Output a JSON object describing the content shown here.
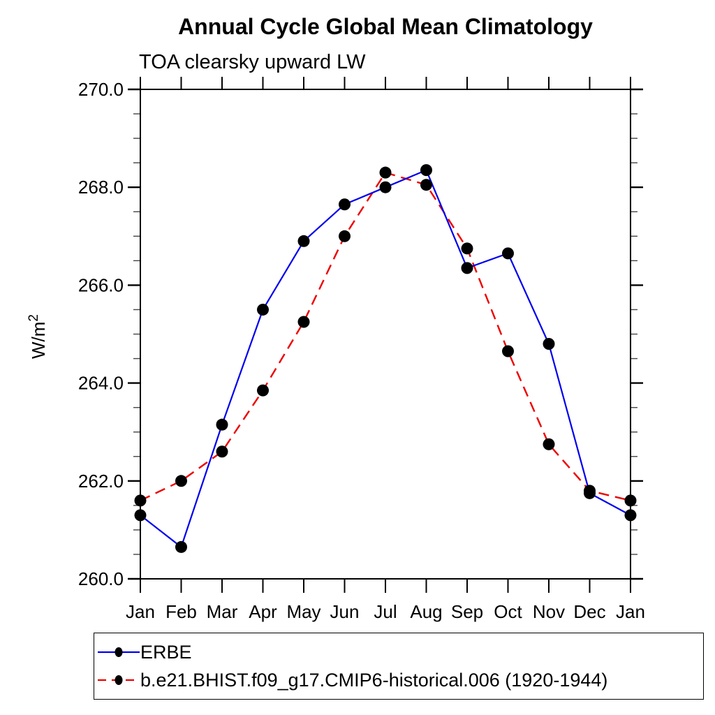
{
  "chart_data": {
    "type": "line",
    "title": "Annual Cycle Global Mean Climatology",
    "subtitle": "TOA clearsky upward LW",
    "ylabel": "W/m²",
    "ylabel_base": "W/m",
    "ylabel_sup": "2",
    "categories": [
      "Jan",
      "Feb",
      "Mar",
      "Apr",
      "May",
      "Jun",
      "Jul",
      "Aug",
      "Sep",
      "Oct",
      "Nov",
      "Dec",
      "Jan"
    ],
    "ylim": [
      260.0,
      270.0
    ],
    "ytick_values": [
      260.0,
      262.0,
      264.0,
      266.0,
      268.0,
      270.0
    ],
    "ytick_labels": [
      "260.0",
      "262.0",
      "264.0",
      "266.0",
      "268.0",
      "270.0"
    ],
    "y_minor_tick_step": 0.5,
    "grid": false,
    "legend_position": "bottom-left",
    "axis_color": "#000000",
    "marker_color": "#000000",
    "series": [
      {
        "id": "erbe",
        "name": "ERBE",
        "color": "#0000ee",
        "line_style": "solid",
        "marker": "filled-circle",
        "values": [
          261.3,
          260.65,
          263.15,
          265.5,
          266.9,
          267.65,
          268.0,
          268.35,
          266.35,
          266.65,
          264.8,
          261.75,
          261.3
        ]
      },
      {
        "id": "cmip6",
        "name": "b.e21.BHIST.f09_g17.CMIP6-historical.006 (1920-1944)",
        "color": "#ee0000",
        "line_style": "dashed",
        "marker": "filled-circle",
        "values": [
          261.6,
          262.0,
          262.6,
          263.85,
          265.25,
          267.0,
          268.3,
          268.05,
          266.75,
          264.65,
          262.75,
          261.8,
          261.6
        ]
      }
    ]
  }
}
